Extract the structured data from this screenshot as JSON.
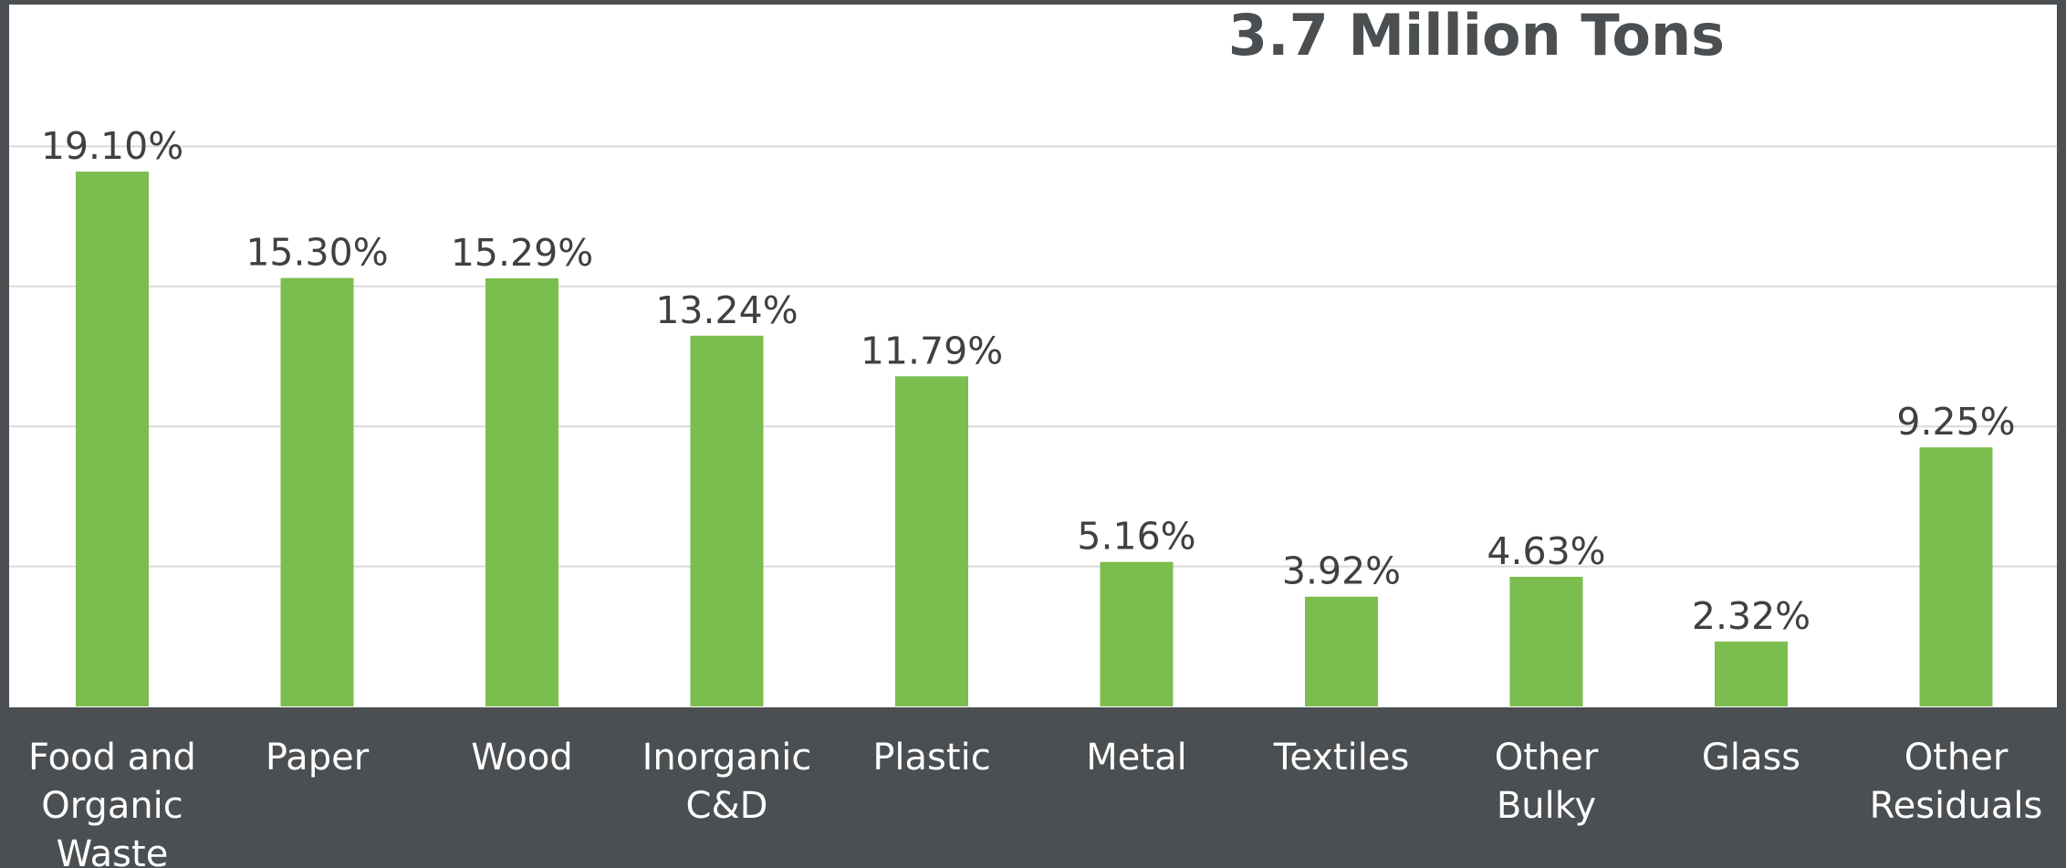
{
  "chart_data": {
    "type": "bar",
    "title": "3.7 Million Tons",
    "xlabel": "",
    "ylabel": "",
    "categories": [
      [
        "Food and",
        "Organic",
        "Waste"
      ],
      [
        "Paper"
      ],
      [
        "Wood"
      ],
      [
        "Inorganic",
        "C&D"
      ],
      [
        "Plastic"
      ],
      [
        "Metal"
      ],
      [
        "Textiles"
      ],
      [
        "Other",
        "Bulky"
      ],
      [
        "Glass"
      ],
      [
        "Other",
        "Residuals"
      ]
    ],
    "values": [
      19.1,
      15.3,
      15.29,
      13.24,
      11.79,
      5.16,
      3.92,
      4.63,
      2.32,
      9.25
    ],
    "data_labels": [
      "19.10%",
      "15.30%",
      "15.29%",
      "13.24%",
      "11.79%",
      "5.16%",
      "3.92%",
      "4.63%",
      "2.32%",
      "9.25%"
    ],
    "ylim": [
      0,
      25
    ],
    "gridlines": [
      5,
      10,
      15,
      20
    ],
    "grid": true,
    "legend": "none",
    "colors": {
      "bar": "#7cbd4f",
      "background": "#4b4f52",
      "plot_background": "#ffffff",
      "title": "#4b4f52",
      "data_label": "#404040",
      "category_label": "#ffffff",
      "gridline": "#d9d9d9"
    }
  }
}
